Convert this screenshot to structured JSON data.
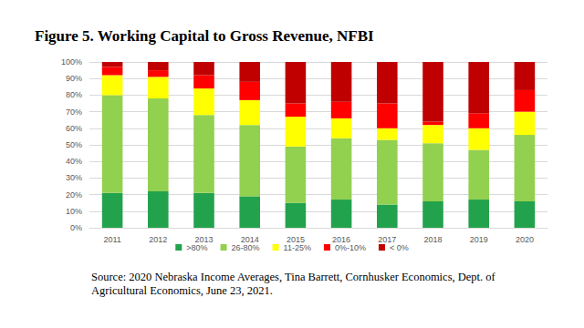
{
  "chart_data": {
    "type": "bar",
    "title": "Figure 5. Working Capital to Gross Revenue, NFBI",
    "annotations": [
      "Source: 2020 Nebraska Income Averages, Tina Barrett, Cornhusker Economics, Dept. of Agricultural Economics, June 23, 2021."
    ],
    "categories": [
      "2011",
      "2012",
      "2013",
      "2014",
      "2015",
      "2016",
      "2017",
      "2018",
      "2019",
      "2020"
    ],
    "series": [
      {
        "name": ">80%",
        "color": "#22a24c",
        "values": [
          21,
          22,
          21,
          19,
          15,
          17,
          14,
          16,
          17,
          16
        ]
      },
      {
        "name": "26-80%",
        "color": "#92d050",
        "values": [
          59,
          56,
          47,
          43,
          34,
          37,
          39,
          35,
          30,
          40
        ]
      },
      {
        "name": "11-25%",
        "color": "#ffff00",
        "values": [
          12,
          13,
          16,
          15,
          18,
          12,
          7,
          11,
          13,
          14
        ]
      },
      {
        "name": "0%-10%",
        "color": "#ff0000",
        "values": [
          5,
          4,
          8,
          11,
          8,
          10,
          15,
          2,
          9,
          13
        ]
      },
      {
        "name": "< 0%",
        "color": "#c00000",
        "values": [
          3,
          5,
          8,
          12,
          25,
          24,
          25,
          36,
          31,
          17
        ]
      }
    ],
    "ylim": [
      0,
      100
    ],
    "yticks": [
      {
        "value": 0,
        "label": "0%"
      },
      {
        "value": 10,
        "label": "10%"
      },
      {
        "value": 20,
        "label": "20%"
      },
      {
        "value": 30,
        "label": "30%"
      },
      {
        "value": 40,
        "label": "40%"
      },
      {
        "value": 50,
        "label": "50%"
      },
      {
        "value": 60,
        "label": "60%"
      },
      {
        "value": 70,
        "label": "70%"
      },
      {
        "value": 80,
        "label": "80%"
      },
      {
        "value": 90,
        "label": "90%"
      },
      {
        "value": 100,
        "label": "100%"
      }
    ],
    "stacked": true,
    "grid": true,
    "legend": "bottom"
  }
}
